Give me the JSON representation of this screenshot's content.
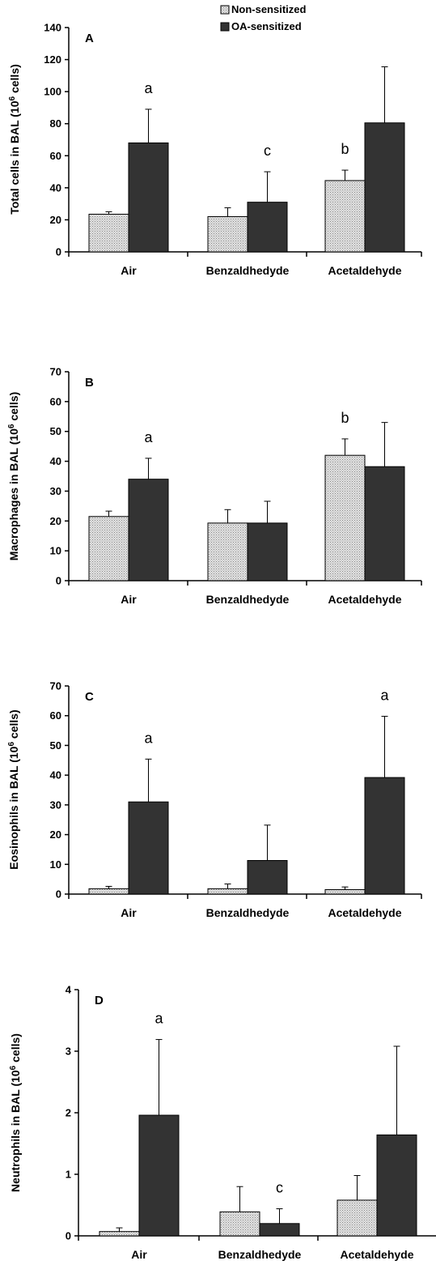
{
  "legend": {
    "items": [
      {
        "label": "Non-sensitized",
        "color": "#d4d4d4",
        "pattern": "dotted"
      },
      {
        "label": "OA-sensitized",
        "color": "#333333",
        "pattern": "solid"
      }
    ],
    "placement": "top-right"
  },
  "chart_data": [
    {
      "type": "bar",
      "panel_label": "A",
      "ylabel": "Total cells in BAL (10",
      "ylabel_sup": "6",
      "ylabel_suffix": "cells)",
      "categories": [
        "Air",
        "Benzaldhedyde",
        "Acetaldehyde"
      ],
      "ylim": [
        0,
        140
      ],
      "yticks": [
        "0",
        "20",
        "40",
        "60",
        "80",
        "100",
        "120",
        "140"
      ],
      "series": [
        {
          "name": "Non-sensitized",
          "values": [
            23.5,
            22,
            44.5
          ],
          "errors": [
            1.5,
            5.5,
            6.5
          ]
        },
        {
          "name": "OA-sensitized",
          "values": [
            68,
            31,
            80.5
          ],
          "errors": [
            21,
            19,
            35
          ]
        }
      ],
      "annotations": [
        {
          "category": 0,
          "series": 1,
          "text": "a"
        },
        {
          "category": 1,
          "series": 1,
          "text": "c"
        },
        {
          "category": 2,
          "series": 0,
          "text": "b"
        }
      ]
    },
    {
      "type": "bar",
      "panel_label": "B",
      "ylabel": "Macrophages in BAL (10",
      "ylabel_sup": "6",
      "ylabel_suffix": "cells)",
      "categories": [
        "Air",
        "Benzaldhedyde",
        "Acetaldehyde"
      ],
      "ylim": [
        0,
        70
      ],
      "yticks": [
        "0",
        "10",
        "20",
        "30",
        "40",
        "50",
        "60",
        "70"
      ],
      "series": [
        {
          "name": "Non-sensitized",
          "values": [
            21.5,
            19.3,
            42
          ],
          "errors": [
            1.8,
            4.5,
            5.5
          ]
        },
        {
          "name": "OA-sensitized",
          "values": [
            34,
            19.3,
            38.2
          ],
          "errors": [
            7,
            7.3,
            14.8
          ]
        }
      ],
      "annotations": [
        {
          "category": 0,
          "series": 1,
          "text": "a"
        },
        {
          "category": 2,
          "series": 0,
          "text": "b"
        }
      ]
    },
    {
      "type": "bar",
      "panel_label": "C",
      "ylabel": "Eosinophils in BAL (10",
      "ylabel_sup": "6",
      "ylabel_suffix": "cells)",
      "categories": [
        "Air",
        "Benzaldhedyde",
        "Acetaldehyde"
      ],
      "ylim": [
        0,
        70
      ],
      "yticks": [
        "0",
        "10",
        "20",
        "30",
        "40",
        "50",
        "60",
        "70"
      ],
      "series": [
        {
          "name": "Non-sensitized",
          "values": [
            1.8,
            1.8,
            1.5
          ],
          "errors": [
            0.8,
            1.6,
            0.9
          ]
        },
        {
          "name": "OA-sensitized",
          "values": [
            31,
            11.3,
            39.2
          ],
          "errors": [
            14.4,
            11.9,
            20.6
          ]
        }
      ],
      "annotations": [
        {
          "category": 0,
          "series": 1,
          "text": "a"
        },
        {
          "category": 2,
          "series": 1,
          "text": "a"
        }
      ]
    },
    {
      "type": "bar",
      "panel_label": "D",
      "ylabel": "Neutrophils in BAL (10",
      "ylabel_sup": "6",
      "ylabel_suffix": "cells)",
      "categories": [
        "Air",
        "Benzaldhedyde",
        "Acetaldehyde"
      ],
      "ylim": [
        0,
        4
      ],
      "yticks": [
        "0",
        "1",
        "2",
        "3",
        "4"
      ],
      "series": [
        {
          "name": "Non-sensitized",
          "values": [
            0.07,
            0.39,
            0.58
          ],
          "errors": [
            0.06,
            0.41,
            0.4
          ]
        },
        {
          "name": "OA-sensitized",
          "values": [
            1.96,
            0.2,
            1.64
          ],
          "errors": [
            1.23,
            0.24,
            1.44
          ]
        }
      ],
      "annotations": [
        {
          "category": 0,
          "series": 1,
          "text": "a"
        },
        {
          "category": 1,
          "series": 1,
          "text": "c"
        }
      ]
    }
  ]
}
